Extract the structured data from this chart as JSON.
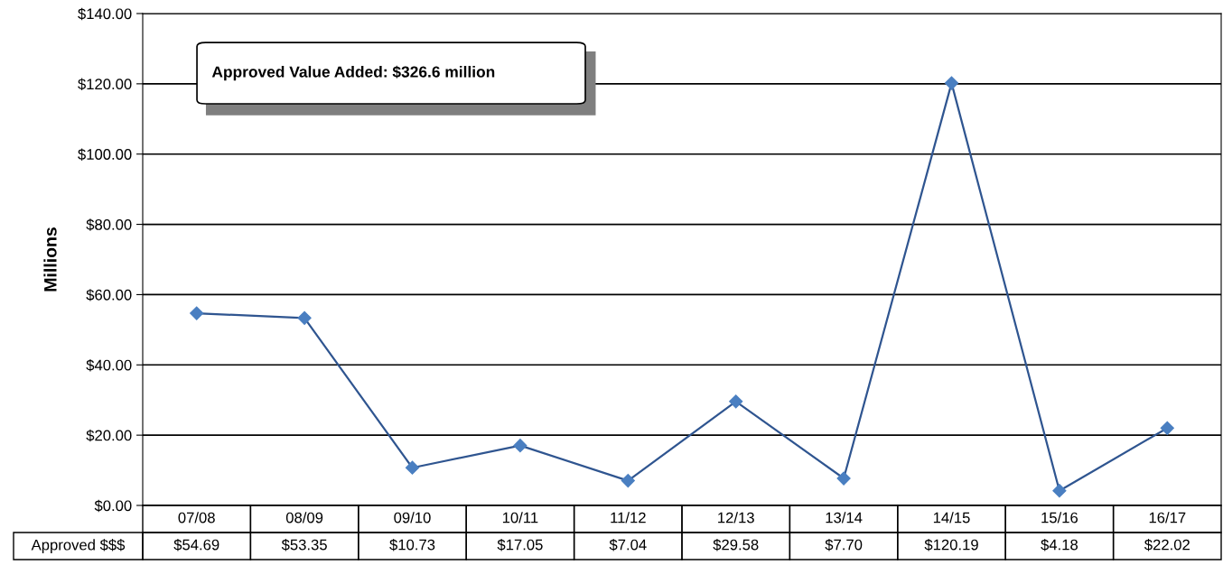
{
  "chart_data": {
    "type": "line",
    "categories": [
      "07/08",
      "08/09",
      "09/10",
      "10/11",
      "11/12",
      "12/13",
      "13/14",
      "14/15",
      "15/16",
      "16/17"
    ],
    "series": [
      {
        "name": "Approved $$$",
        "color": "#2f5590",
        "values": [
          54.69,
          53.35,
          10.73,
          17.05,
          7.04,
          29.58,
          7.7,
          120.19,
          4.18,
          22.02
        ],
        "value_labels": [
          "$54.69",
          "$53.35",
          "$10.73",
          "$17.05",
          "$7.04",
          "$29.58",
          "$7.70",
          "$120.19",
          "$4.18",
          "$22.02"
        ]
      }
    ],
    "ylabel": "Millions",
    "ylim": [
      0,
      140
    ],
    "yticks": [
      {
        "value": 0,
        "label": "$0.00"
      },
      {
        "value": 20,
        "label": "$20.00"
      },
      {
        "value": 40,
        "label": "$40.00"
      },
      {
        "value": 60,
        "label": "$60.00"
      },
      {
        "value": 80,
        "label": "$80.00"
      },
      {
        "value": 100,
        "label": "$100.00"
      },
      {
        "value": 120,
        "label": "$120.00"
      },
      {
        "value": 140,
        "label": "$140.00"
      }
    ],
    "grid": "y",
    "marker": "diamond",
    "line_style": "solid",
    "legend": false,
    "annotations": [
      "Approved Value Added: $326.6 million"
    ]
  }
}
